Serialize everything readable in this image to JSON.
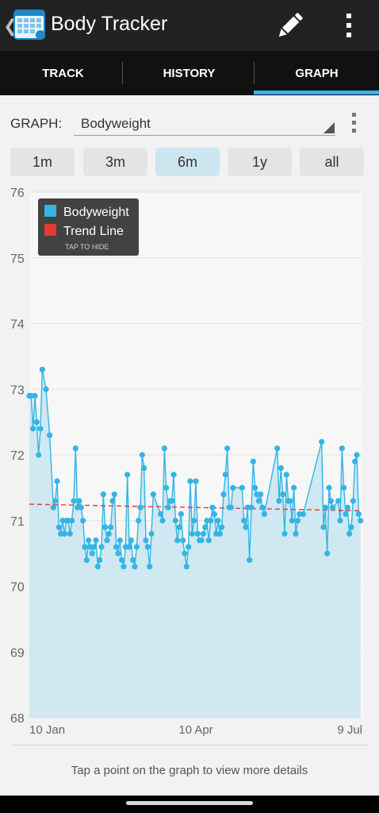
{
  "app": {
    "title": "Body Tracker"
  },
  "icons": {
    "back": "chevron-left-icon",
    "app": "calendar-icon",
    "edit": "pencil-icon",
    "overflow": "more-vert-icon"
  },
  "tabs": [
    {
      "label": "TRACK",
      "active": false
    },
    {
      "label": "HISTORY",
      "active": false
    },
    {
      "label": "GRAPH",
      "active": true
    }
  ],
  "graph_selector": {
    "label": "GRAPH:",
    "selected": "Bodyweight"
  },
  "ranges": [
    {
      "label": "1m",
      "active": false
    },
    {
      "label": "3m",
      "active": false
    },
    {
      "label": "6m",
      "active": true
    },
    {
      "label": "1y",
      "active": false
    },
    {
      "label": "all",
      "active": false
    }
  ],
  "colors": {
    "accent": "#33b5e5",
    "area": "#cfe8f1",
    "trend": "#e53935",
    "legend_bg": "#424242"
  },
  "chart_data": {
    "type": "line",
    "y_ticks": [
      "76",
      "75",
      "74",
      "73",
      "72",
      "71",
      "70",
      "69",
      "68"
    ],
    "ylim": [
      68,
      76
    ],
    "xlim": [
      0,
      180
    ],
    "x_ticks": [
      {
        "label": "10 Jan",
        "x": 0
      },
      {
        "label": "10 Apr",
        "x": 90
      },
      {
        "label": "9 Jul",
        "x": 180
      }
    ],
    "legend": {
      "items": [
        "Bodyweight",
        "Trend Line"
      ],
      "hint": "TAP TO HIDE",
      "position": "top-left"
    },
    "series": [
      {
        "name": "Bodyweight",
        "points": [
          [
            0,
            72.9
          ],
          [
            1,
            72.9
          ],
          [
            2,
            72.4
          ],
          [
            3,
            72.9
          ],
          [
            4,
            72.5
          ],
          [
            5,
            72.0
          ],
          [
            6,
            72.4
          ],
          [
            7,
            73.3
          ],
          [
            9,
            73.0
          ],
          [
            11,
            72.3
          ],
          [
            13,
            71.2
          ],
          [
            14,
            71.3
          ],
          [
            15,
            71.6
          ],
          [
            16,
            70.9
          ],
          [
            17,
            70.8
          ],
          [
            18,
            71.0
          ],
          [
            19,
            70.8
          ],
          [
            20,
            71.0
          ],
          [
            21,
            71.0
          ],
          [
            22,
            70.8
          ],
          [
            23,
            71.0
          ],
          [
            24,
            71.3
          ],
          [
            25,
            72.1
          ],
          [
            26,
            71.2
          ],
          [
            27,
            71.3
          ],
          [
            28,
            71.2
          ],
          [
            29,
            71.0
          ],
          [
            30,
            70.6
          ],
          [
            31,
            70.4
          ],
          [
            32,
            70.7
          ],
          [
            33,
            70.6
          ],
          [
            34,
            70.5
          ],
          [
            35,
            70.6
          ],
          [
            36,
            70.7
          ],
          [
            37,
            70.3
          ],
          [
            38,
            70.4
          ],
          [
            39,
            70.6
          ],
          [
            40,
            71.4
          ],
          [
            41,
            70.9
          ],
          [
            42,
            70.7
          ],
          [
            43,
            70.8
          ],
          [
            44,
            70.9
          ],
          [
            45,
            71.3
          ],
          [
            46,
            71.4
          ],
          [
            47,
            70.6
          ],
          [
            48,
            70.5
          ],
          [
            49,
            70.7
          ],
          [
            50,
            70.4
          ],
          [
            51,
            70.3
          ],
          [
            52,
            70.6
          ],
          [
            53,
            71.7
          ],
          [
            54,
            70.6
          ],
          [
            55,
            70.7
          ],
          [
            56,
            70.4
          ],
          [
            57,
            70.3
          ],
          [
            58,
            70.6
          ],
          [
            59,
            71.0
          ],
          [
            60,
            71.2
          ],
          [
            61,
            72.0
          ],
          [
            62,
            71.8
          ],
          [
            63,
            70.7
          ],
          [
            64,
            70.6
          ],
          [
            65,
            70.3
          ],
          [
            66,
            70.8
          ],
          [
            67,
            71.4
          ],
          [
            71,
            71.1
          ],
          [
            72,
            71.0
          ],
          [
            73,
            72.1
          ],
          [
            74,
            71.5
          ],
          [
            75,
            71.2
          ],
          [
            76,
            71.3
          ],
          [
            77,
            71.3
          ],
          [
            78,
            71.7
          ],
          [
            79,
            71.0
          ],
          [
            80,
            70.7
          ],
          [
            81,
            70.9
          ],
          [
            82,
            71.1
          ],
          [
            83,
            70.7
          ],
          [
            84,
            70.5
          ],
          [
            85,
            70.3
          ],
          [
            86,
            70.6
          ],
          [
            87,
            71.6
          ],
          [
            88,
            70.8
          ],
          [
            89,
            71.0
          ],
          [
            90,
            71.6
          ],
          [
            91,
            70.8
          ],
          [
            92,
            70.7
          ],
          [
            93,
            70.7
          ],
          [
            94,
            70.8
          ],
          [
            95,
            70.9
          ],
          [
            96,
            71.0
          ],
          [
            97,
            70.7
          ],
          [
            98,
            71.0
          ],
          [
            99,
            71.2
          ],
          [
            100,
            71.1
          ],
          [
            101,
            70.8
          ],
          [
            102,
            71.0
          ],
          [
            103,
            70.8
          ],
          [
            104,
            70.9
          ],
          [
            105,
            71.4
          ],
          [
            106,
            71.7
          ],
          [
            107,
            72.1
          ],
          [
            108,
            71.2
          ],
          [
            109,
            71.2
          ],
          [
            110,
            71.5
          ],
          [
            115,
            71.5
          ],
          [
            116,
            71.0
          ],
          [
            117,
            70.9
          ],
          [
            118,
            71.2
          ],
          [
            119,
            70.4
          ],
          [
            120,
            71.2
          ],
          [
            121,
            71.9
          ],
          [
            122,
            71.5
          ],
          [
            123,
            71.4
          ],
          [
            124,
            71.3
          ],
          [
            125,
            71.4
          ],
          [
            126,
            71.2
          ],
          [
            127,
            71.1
          ],
          [
            134,
            72.1
          ],
          [
            135,
            71.3
          ],
          [
            136,
            71.8
          ],
          [
            137,
            71.4
          ],
          [
            138,
            70.8
          ],
          [
            139,
            71.7
          ],
          [
            140,
            71.3
          ],
          [
            141,
            71.3
          ],
          [
            142,
            71.0
          ],
          [
            143,
            71.5
          ],
          [
            144,
            70.8
          ],
          [
            145,
            71.0
          ],
          [
            146,
            71.1
          ],
          [
            148,
            71.1
          ],
          [
            158,
            72.2
          ],
          [
            159,
            70.9
          ],
          [
            160,
            71.2
          ],
          [
            161,
            70.5
          ],
          [
            162,
            71.5
          ],
          [
            163,
            71.3
          ],
          [
            164,
            71.2
          ],
          [
            167,
            71.3
          ],
          [
            168,
            71.0
          ],
          [
            169,
            72.1
          ],
          [
            170,
            71.5
          ],
          [
            171,
            71.1
          ],
          [
            172,
            71.2
          ],
          [
            173,
            70.8
          ],
          [
            174,
            70.9
          ],
          [
            175,
            71.3
          ],
          [
            176,
            71.9
          ],
          [
            177,
            72.0
          ],
          [
            178,
            71.1
          ],
          [
            179,
            71.0
          ]
        ]
      },
      {
        "name": "Trend Line",
        "points": [
          [
            0,
            71.25
          ],
          [
            180,
            71.15
          ]
        ]
      }
    ]
  },
  "footer": {
    "hint": "Tap a point on the graph to view more details"
  }
}
